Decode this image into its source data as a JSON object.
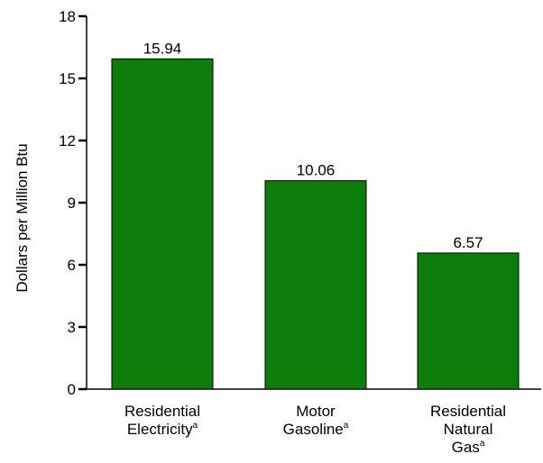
{
  "chart_data": {
    "type": "bar",
    "title": "",
    "xlabel": "",
    "ylabel": "Dollars per Million Btu",
    "ylim": [
      0,
      18
    ],
    "yticks": [
      0,
      3,
      6,
      9,
      12,
      15,
      18
    ],
    "grid": false,
    "bar_color": "#0a7d0a",
    "categories": [
      {
        "lines": [
          "Residential",
          "Electricity"
        ],
        "footnote": "a"
      },
      {
        "lines": [
          "Motor",
          "Gasoline"
        ],
        "footnote": "a"
      },
      {
        "lines": [
          "Residential",
          "Natural",
          "Gas"
        ],
        "footnote": "a"
      }
    ],
    "values": [
      15.94,
      10.06,
      6.57
    ],
    "data_labels": [
      "15.94",
      "10.06",
      "6.57"
    ]
  }
}
